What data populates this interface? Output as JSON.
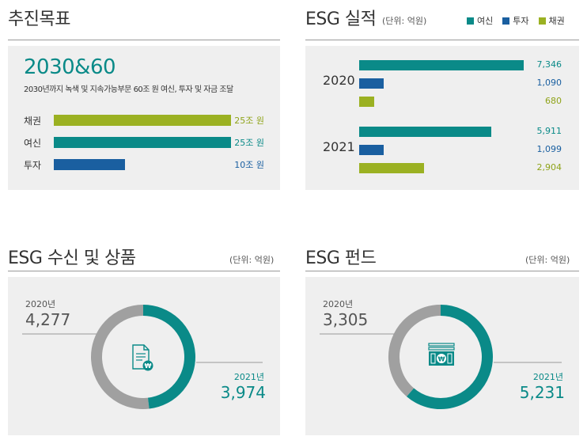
{
  "colors": {
    "loan": "#0a8a88",
    "invest": "#1a5fa0",
    "bond": "#9bb122",
    "gray": "#a0a0a0"
  },
  "target": {
    "title": "추진목표",
    "headline": "2030&60",
    "desc": "2030년까지 녹색 및 지속가능부문 60조 원 여신, 투자 및 자금 조달",
    "bars": [
      {
        "label": "채권",
        "value": 25,
        "value_text": "25조 원",
        "color": "bond"
      },
      {
        "label": "여신",
        "value": 25,
        "value_text": "25조 원",
        "color": "loan"
      },
      {
        "label": "투자",
        "value": 10,
        "value_text": "10조 원",
        "color": "invest"
      }
    ]
  },
  "performance": {
    "title": "ESG 실적",
    "unit": "(단위: 억원)",
    "legend": [
      {
        "label": "여신",
        "color": "loan"
      },
      {
        "label": "투자",
        "color": "invest"
      },
      {
        "label": "채권",
        "color": "bond"
      }
    ]
  },
  "deposit": {
    "title": "ESG 수신 및 상품",
    "unit": "(단위: 억원)",
    "icon": "document-won-icon"
  },
  "fund": {
    "title": "ESG 펀드",
    "unit": "(단위: 억원)",
    "icon": "banknote-won-icon"
  },
  "chart_data": [
    {
      "type": "bar",
      "orientation": "horizontal",
      "title": "추진목표",
      "categories": [
        "채권",
        "여신",
        "투자"
      ],
      "values": [
        25,
        25,
        10
      ],
      "value_labels": [
        "25조 원",
        "25조 원",
        "10조 원"
      ]
    },
    {
      "type": "bar",
      "orientation": "horizontal",
      "title": "ESG 실적",
      "categories": [
        "2020",
        "2021"
      ],
      "series": [
        {
          "name": "여신",
          "values": [
            7346,
            5911
          ],
          "labels": [
            "7,346",
            "5,911"
          ],
          "color": "loan"
        },
        {
          "name": "투자",
          "values": [
            1090,
            1099
          ],
          "labels": [
            "1,090",
            "1,099"
          ],
          "color": "invest"
        },
        {
          "name": "채권",
          "values": [
            680,
            2904
          ],
          "labels": [
            "680",
            "2,904"
          ],
          "color": "bond"
        }
      ],
      "legend": "top-right"
    },
    {
      "type": "pie",
      "title": "ESG 수신 및 상품",
      "slices": [
        {
          "label": "2020년",
          "value": 4277,
          "value_text": "4,277",
          "color": "gray"
        },
        {
          "label": "2021년",
          "value": 3974,
          "value_text": "3,974",
          "color": "loan"
        }
      ]
    },
    {
      "type": "pie",
      "title": "ESG 펀드",
      "slices": [
        {
          "label": "2020년",
          "value": 3305,
          "value_text": "3,305",
          "color": "gray"
        },
        {
          "label": "2021년",
          "value": 5231,
          "value_text": "5,231",
          "color": "loan"
        }
      ]
    }
  ]
}
